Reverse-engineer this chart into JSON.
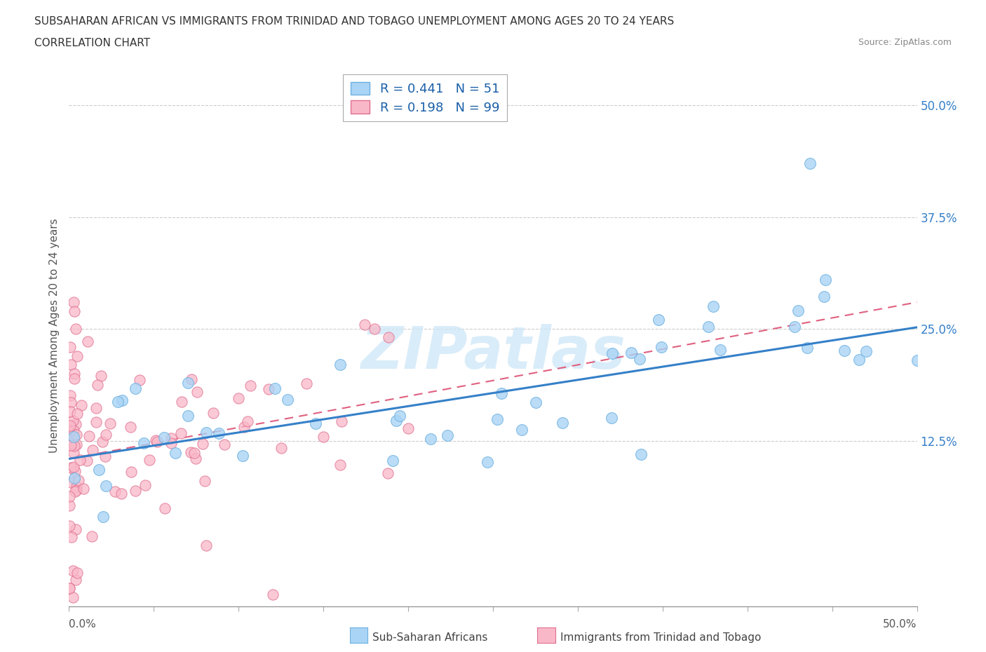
{
  "title_line1": "SUBSAHARAN AFRICAN VS IMMIGRANTS FROM TRINIDAD AND TOBAGO UNEMPLOYMENT AMONG AGES 20 TO 24 YEARS",
  "title_line2": "CORRELATION CHART",
  "source": "Source: ZipAtlas.com",
  "ylabel": "Unemployment Among Ages 20 to 24 years",
  "ytick_values": [
    0.125,
    0.25,
    0.375,
    0.5
  ],
  "xmin": 0.0,
  "xmax": 0.5,
  "ymin": -0.06,
  "ymax": 0.545,
  "legend_entry1": "R = 0.441   N = 51",
  "legend_entry2": "R = 0.198   N = 99",
  "legend_color1": "#aad4f5",
  "legend_color2": "#f9b8c8",
  "scatter_color1": "#aad4f5",
  "scatter_color2": "#f9b8c8",
  "scatter_edge1": "#6bb0e0",
  "scatter_edge2": "#e07090",
  "trend_color1": "#3580c8",
  "trend_color2": "#e06080",
  "right_tick_color": "#3580c8",
  "watermark_color": "#d0e8f8",
  "label1": "Sub-Saharan Africans",
  "label2": "Immigrants from Trinidad and Tobago",
  "blue_trend_x0": 0.0,
  "blue_trend_y0": 0.105,
  "blue_trend_x1": 0.5,
  "blue_trend_y1": 0.252,
  "pink_trend_x0": 0.0,
  "pink_trend_y0": 0.105,
  "pink_trend_x1": 0.2,
  "pink_trend_y1": 0.175
}
